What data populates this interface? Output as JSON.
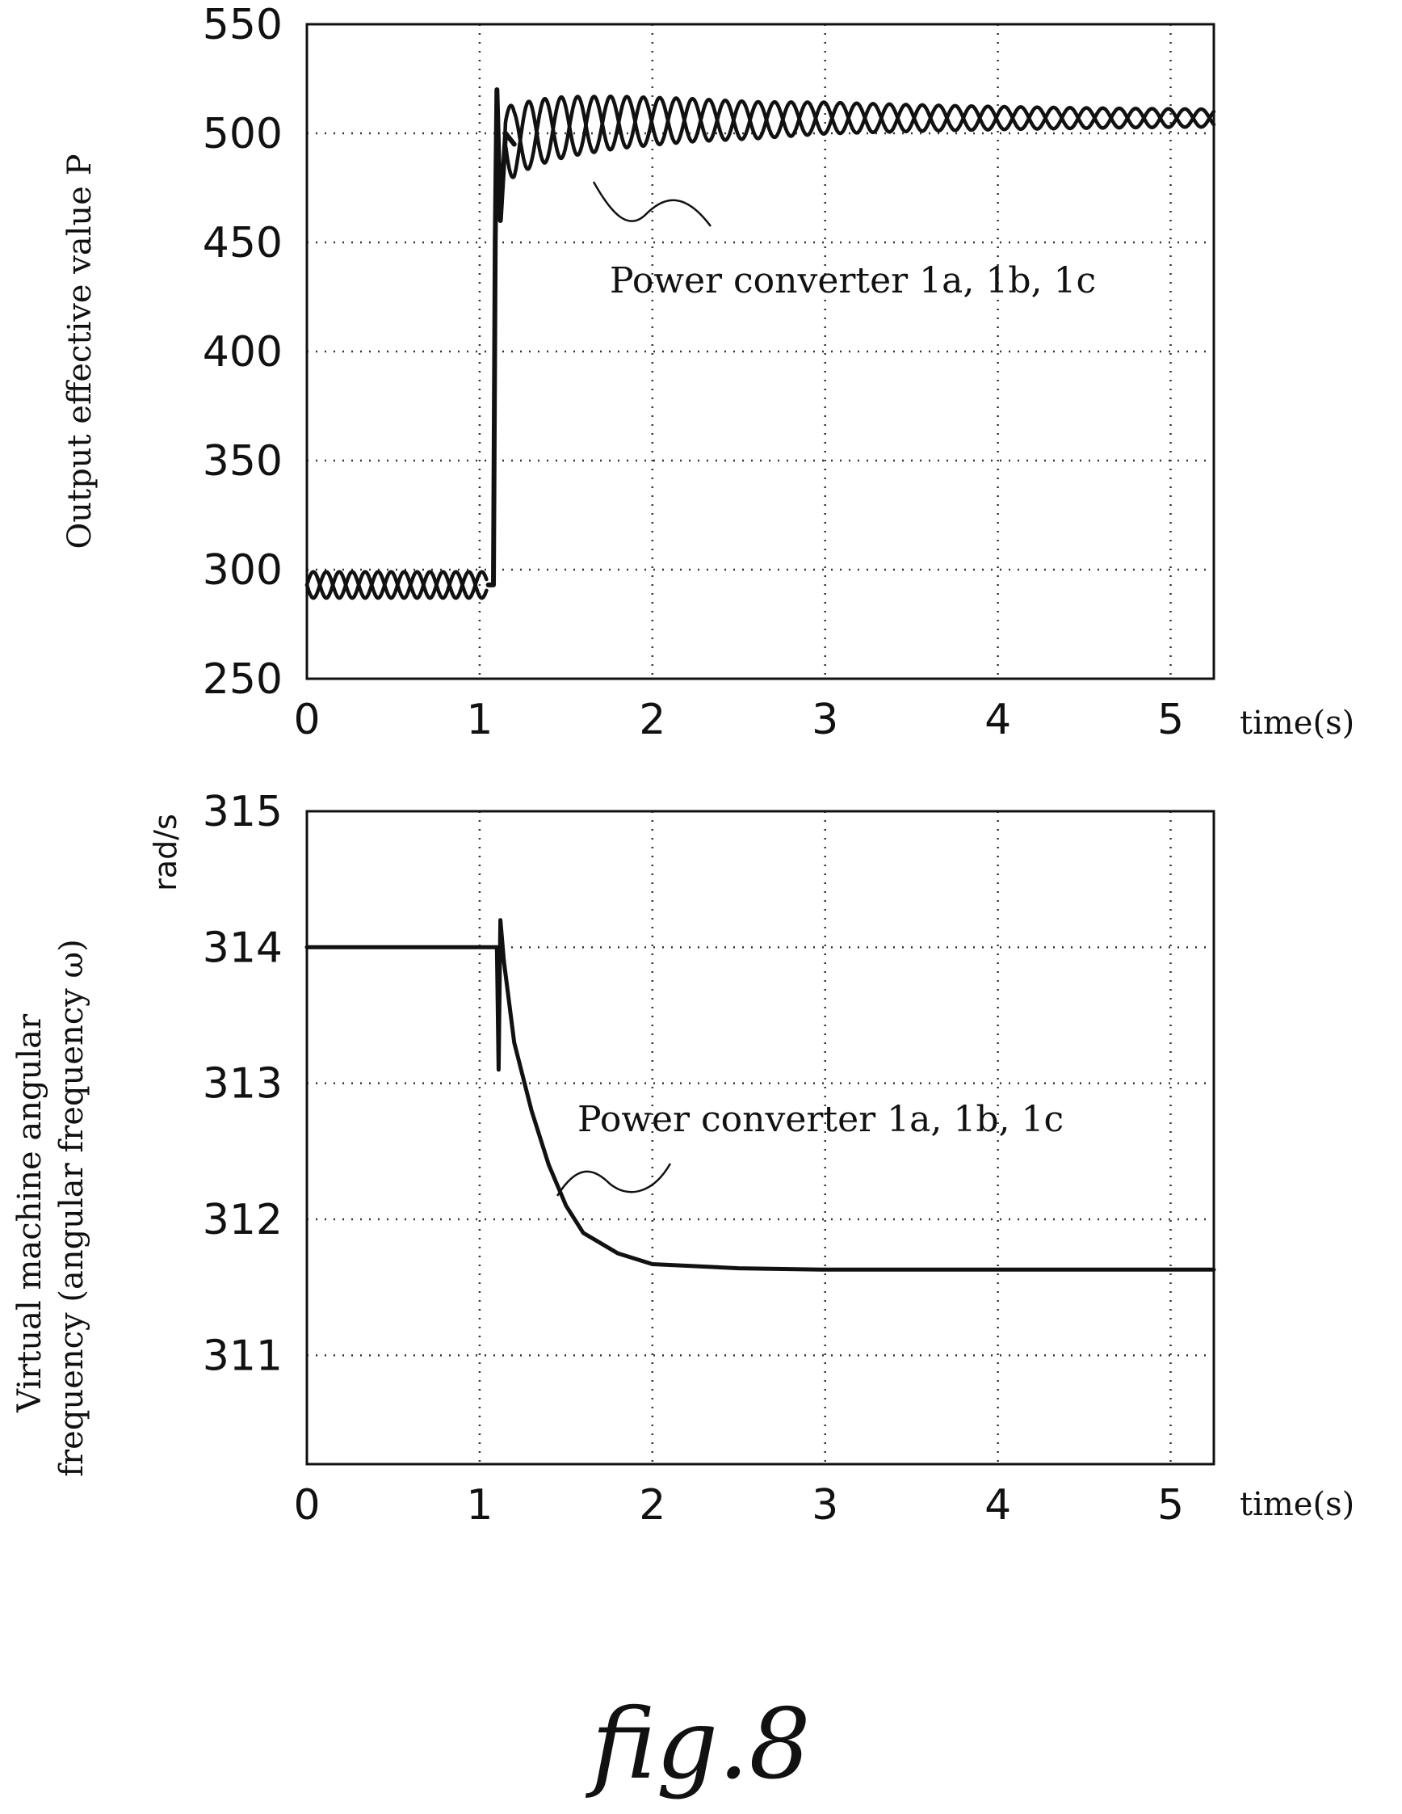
{
  "caption": "fig.8",
  "chart_data": [
    {
      "type": "line",
      "ylabel": "Output effective value P",
      "xlabel": "time(s)",
      "xlim": [
        0,
        5.25
      ],
      "ylim": [
        250,
        550
      ],
      "x_ticks": [
        "0",
        "1",
        "2",
        "3",
        "4",
        "5"
      ],
      "y_ticks": [
        "550",
        "500",
        "450",
        "400",
        "350",
        "300",
        "250"
      ],
      "grid": true,
      "annotation": "Power converter 1a, 1b, 1c",
      "series": [
        {
          "name": "Power converter 1a, 1b, 1c",
          "x": [
            0,
            0.3,
            0.6,
            0.9,
            1.05,
            1.08,
            1.09,
            1.1,
            1.12,
            1.15,
            1.2,
            1.3,
            1.5,
            1.8,
            2.2,
            2.6,
            3.0,
            3.5,
            4.0,
            4.5,
            5.0,
            5.25
          ],
          "y": [
            293,
            293,
            293,
            293,
            293,
            293,
            450,
            520,
            460,
            500,
            495,
            500,
            503,
            505,
            506,
            506,
            507,
            507,
            507,
            507,
            507,
            507
          ]
        }
      ]
    },
    {
      "type": "line",
      "ylabel": "Virtual machine angular frequency (angular frequency ω)",
      "yunit": "rad/s",
      "xlabel": "time(s)",
      "xlim": [
        0,
        5.25
      ],
      "ylim": [
        310.2,
        315
      ],
      "x_ticks": [
        "0",
        "1",
        "2",
        "3",
        "4",
        "5"
      ],
      "y_ticks": [
        "315",
        "314",
        "313",
        "312",
        "311"
      ],
      "grid": true,
      "annotation": "Power converter 1a, 1b, 1c",
      "series": [
        {
          "name": "Power converter 1a, 1b, 1c",
          "x": [
            0,
            0.5,
            1.0,
            1.1,
            1.11,
            1.12,
            1.14,
            1.2,
            1.3,
            1.4,
            1.5,
            1.6,
            1.8,
            2.0,
            2.5,
            3.0,
            4.0,
            5.0,
            5.25
          ],
          "y": [
            314.0,
            314.0,
            314.0,
            314.0,
            313.1,
            314.2,
            313.9,
            313.3,
            312.8,
            312.4,
            312.1,
            311.9,
            311.75,
            311.67,
            311.64,
            311.63,
            311.63,
            311.63,
            311.63
          ]
        }
      ]
    }
  ]
}
